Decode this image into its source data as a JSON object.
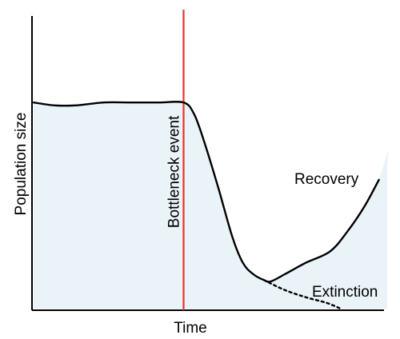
{
  "chart_data": {
    "type": "line",
    "title": "",
    "xlabel": "Time",
    "ylabel": "Population size",
    "x_ticks": [],
    "y_ticks": [],
    "grid": false,
    "event": {
      "label": "Bottleneck event",
      "x": 0.43,
      "color": "#e8322a"
    },
    "series": [
      {
        "name": "Recovery",
        "style": "solid",
        "x": [
          0,
          0.06,
          0.12,
          0.2,
          0.28,
          0.36,
          0.43,
          0.46,
          0.49,
          0.53,
          0.57,
          0.6,
          0.63,
          0.66,
          0.68,
          0.72,
          0.78,
          0.85,
          0.9,
          0.95,
          0.99
        ],
        "y": [
          0.72,
          0.71,
          0.71,
          0.72,
          0.72,
          0.72,
          0.72,
          0.68,
          0.58,
          0.42,
          0.25,
          0.16,
          0.12,
          0.1,
          0.095,
          0.12,
          0.16,
          0.2,
          0.27,
          0.36,
          0.45
        ]
      },
      {
        "name": "Extinction",
        "style": "dotted",
        "x": [
          0.66,
          0.72,
          0.78,
          0.84,
          0.88
        ],
        "y": [
          0.1,
          0.065,
          0.04,
          0.02,
          0.0
        ]
      }
    ],
    "shading": {
      "color": "#eaf3f8"
    },
    "colors": {
      "axis": "#000000",
      "curve": "#000000",
      "event_line": "#e8322a"
    }
  }
}
